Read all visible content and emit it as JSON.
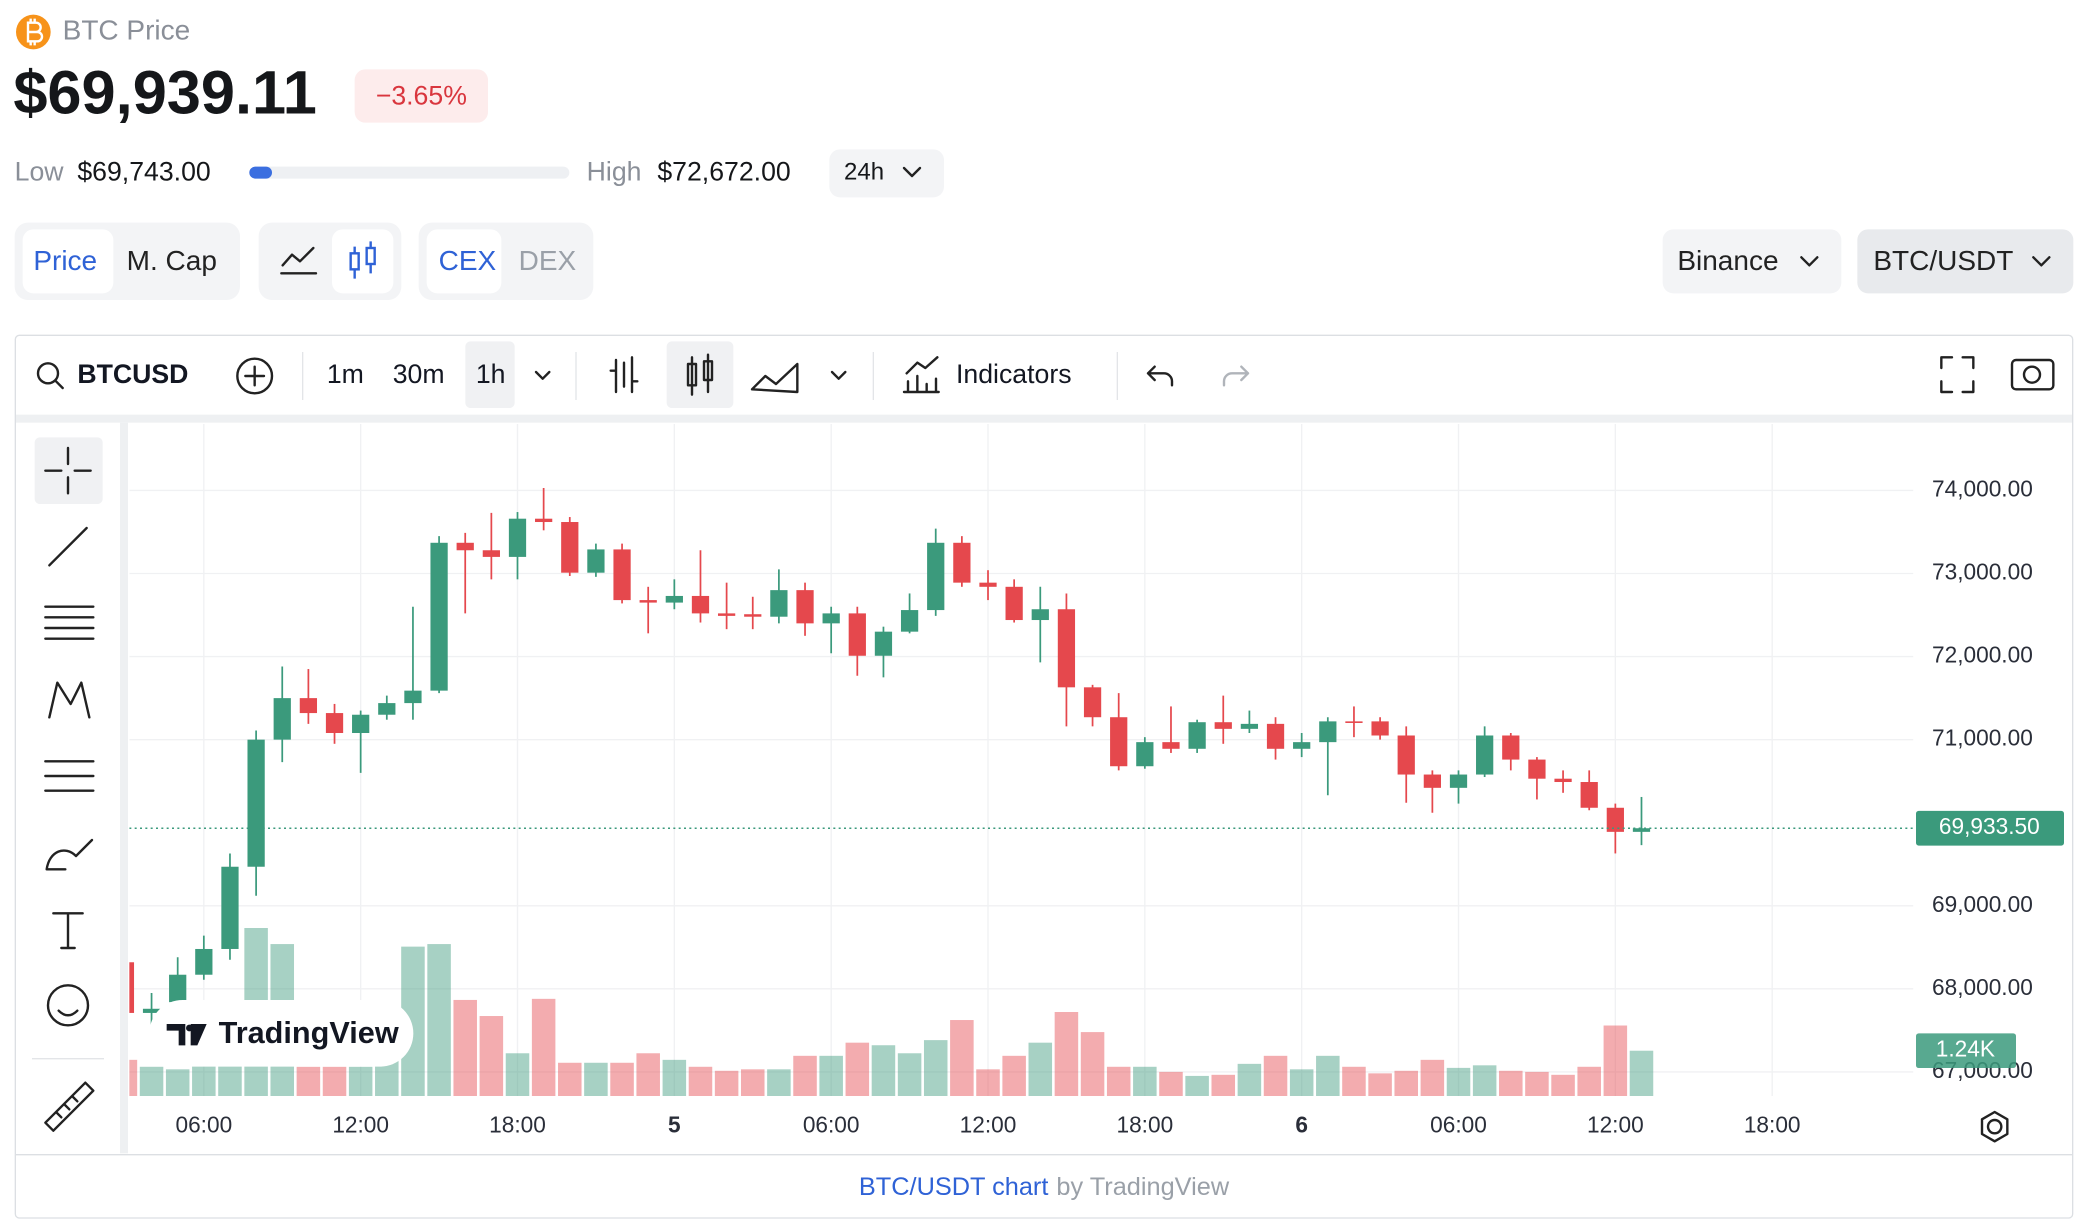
{
  "header": {
    "coin": "BTC Price",
    "price": "$69,939.11",
    "change": "−3.65%",
    "low_label": "Low",
    "low": "$69,743.00",
    "high_label": "High",
    "high": "$72,672.00",
    "range": "24h"
  },
  "tabs": {
    "metric": [
      "Price",
      "M. Cap"
    ],
    "source": [
      "CEX",
      "DEX"
    ],
    "exchange": "Binance",
    "pair": "BTC/USDT"
  },
  "toolbar": {
    "symbol": "BTCUSD",
    "intervals": [
      "1m",
      "30m",
      "1h"
    ],
    "indicators": "Indicators"
  },
  "watermark": "TradingView",
  "footer": {
    "link": "BTC/USDT chart",
    "by": "by TradingView"
  },
  "chart_data": {
    "type": "candlestick",
    "up_color": "#3b9a7c",
    "down_color": "#e5484d",
    "x": [
      3,
      4,
      5,
      6,
      7,
      8,
      9,
      10,
      11,
      12,
      13,
      14,
      15,
      16,
      17,
      18,
      19,
      20,
      21,
      22,
      23,
      24,
      25,
      26,
      27,
      28,
      29,
      30,
      31,
      32,
      33,
      34,
      35,
      36,
      37,
      38,
      39,
      40,
      41,
      42,
      43,
      44,
      45,
      46,
      47,
      48,
      49,
      50,
      51,
      52,
      53,
      54,
      55,
      56,
      57,
      58,
      59,
      60,
      61
    ],
    "open": [
      68320,
      67710,
      67840,
      68170,
      68480,
      69470,
      71000,
      71500,
      71320,
      71080,
      71300,
      71440,
      71590,
      73370,
      73280,
      73200,
      73660,
      73620,
      73010,
      73290,
      72680,
      72650,
      72730,
      72520,
      72510,
      72480,
      72800,
      72400,
      72520,
      72010,
      72300,
      72560,
      73370,
      72890,
      72840,
      72440,
      72570,
      71630,
      71270,
      70680,
      70970,
      70890,
      71210,
      71130,
      71190,
      70890,
      70970,
      71220,
      71220,
      71050,
      70580,
      70420,
      70580,
      71050,
      70760,
      70530,
      70490,
      70180,
      69890
    ],
    "high": [
      68320,
      67950,
      68380,
      68640,
      69630,
      71110,
      71880,
      71850,
      71430,
      71350,
      71530,
      72600,
      73450,
      73490,
      73730,
      73740,
      74030,
      73680,
      73360,
      73360,
      72840,
      72930,
      73280,
      72890,
      72720,
      73050,
      72890,
      72600,
      72600,
      72360,
      72760,
      73540,
      73450,
      73040,
      72930,
      72840,
      72760,
      71660,
      71560,
      71030,
      71400,
      71240,
      71530,
      71350,
      71270,
      71080,
      71270,
      71400,
      71270,
      71160,
      70630,
      70630,
      71160,
      71080,
      70790,
      70630,
      70630,
      70230,
      70310
    ],
    "low": [
      67710,
      67470,
      67710,
      68110,
      68350,
      69120,
      70730,
      71190,
      70950,
      70600,
      71240,
      71240,
      71560,
      72520,
      72930,
      72930,
      73520,
      72970,
      72960,
      72640,
      72280,
      72570,
      72410,
      72330,
      72330,
      72400,
      72250,
      72040,
      71770,
      71750,
      72280,
      72490,
      72840,
      72680,
      72410,
      71930,
      71160,
      71160,
      70630,
      70650,
      70840,
      70840,
      70950,
      71080,
      70760,
      70790,
      70330,
      71030,
      71000,
      70240,
      70120,
      70230,
      70550,
      70630,
      70280,
      70360,
      70150,
      69630,
      69730
    ],
    "close": [
      67710,
      67760,
      68170,
      68480,
      69470,
      71000,
      71500,
      71320,
      71080,
      71300,
      71440,
      71590,
      73370,
      73280,
      73200,
      73660,
      73620,
      73010,
      73290,
      72680,
      72650,
      72730,
      72520,
      72490,
      72480,
      72800,
      72400,
      72520,
      72010,
      72300,
      72560,
      73370,
      72890,
      72840,
      72440,
      72570,
      71630,
      71270,
      70680,
      70970,
      70890,
      71210,
      71130,
      71190,
      70890,
      70970,
      71220,
      71210,
      71050,
      70580,
      70420,
      70580,
      71050,
      70760,
      70530,
      70490,
      70180,
      69890,
      69933.5
    ],
    "volume": [
      990,
      800,
      730,
      990,
      2040,
      4600,
      4160,
      800,
      800,
      800,
      990,
      4090,
      4160,
      2630,
      2190,
      1170,
      2660,
      910,
      910,
      910,
      1170,
      990,
      800,
      690,
      730,
      730,
      1100,
      1100,
      1460,
      1390,
      1170,
      1530,
      2080,
      730,
      1100,
      1460,
      2300,
      1750,
      800,
      800,
      660,
      550,
      580,
      880,
      1100,
      730,
      1100,
      800,
      620,
      690,
      990,
      770,
      840,
      690,
      660,
      580,
      800,
      1930,
      1240
    ],
    "xlim": [
      3.15,
      71.4
    ],
    "xticks": [
      {
        "value": 6,
        "label": "06:00"
      },
      {
        "value": 12,
        "label": "12:00"
      },
      {
        "value": 18,
        "label": "18:00"
      },
      {
        "value": 24,
        "label": "5"
      },
      {
        "value": 30,
        "label": "06:00"
      },
      {
        "value": 36,
        "label": "12:00"
      },
      {
        "value": 42,
        "label": "18:00"
      },
      {
        "value": 48,
        "label": "6"
      },
      {
        "value": 54,
        "label": "06:00"
      },
      {
        "value": 60,
        "label": "12:00"
      },
      {
        "value": 66,
        "label": "18:00"
      }
    ],
    "ylim": [
      66710,
      74800
    ],
    "yticks": [
      {
        "value": 67000,
        "label": "67,000.00"
      },
      {
        "value": 68000,
        "label": "68,000.00"
      },
      {
        "value": 69000,
        "label": "69,000.00"
      },
      {
        "value": 71000,
        "label": "71,000.00"
      },
      {
        "value": 72000,
        "label": "72,000.00"
      },
      {
        "value": 73000,
        "label": "73,000.00"
      },
      {
        "value": 74000,
        "label": "74,000.00"
      }
    ],
    "volume_ylim": [
      0,
      18400
    ],
    "price_line": {
      "value": 69933.5,
      "label": "69,933.50"
    },
    "volume_line": {
      "value": 1240,
      "label": "1.24K"
    },
    "grid": true
  }
}
